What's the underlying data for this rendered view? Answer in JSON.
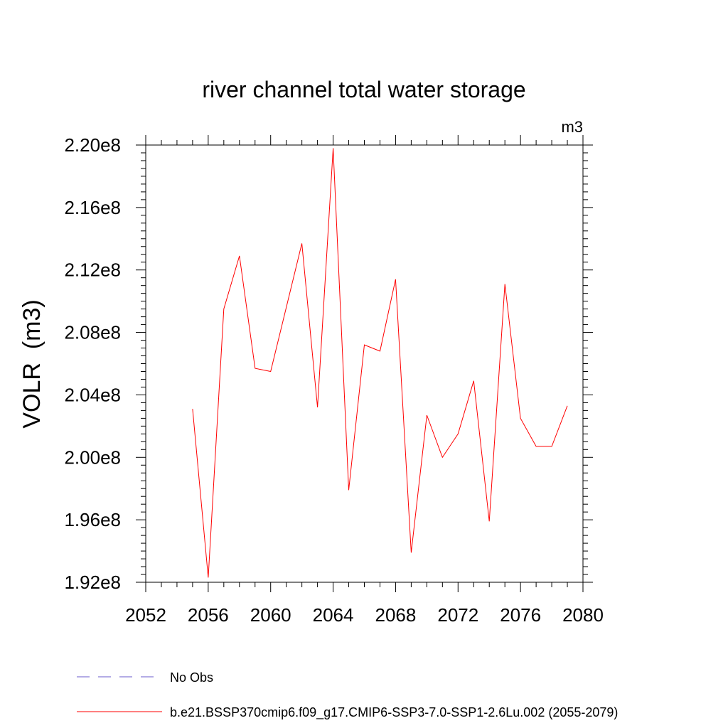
{
  "chart_data": {
    "type": "line",
    "title": "river channel total water storage",
    "units": "m3",
    "xlabel": "",
    "ylabel": "VOLR  (m3)",
    "xlim": [
      2052,
      2080
    ],
    "ylim": [
      192000000.0,
      220000000.0
    ],
    "xticks": [
      2052,
      2056,
      2060,
      2064,
      2068,
      2072,
      2076,
      2080
    ],
    "xtick_labels": [
      "2052",
      "2056",
      "2060",
      "2064",
      "2068",
      "2072",
      "2076",
      "2080"
    ],
    "yticks": [
      192000000.0,
      196000000.0,
      200000000.0,
      204000000.0,
      208000000.0,
      212000000.0,
      216000000.0,
      220000000.0
    ],
    "ytick_labels": [
      "1.92e8",
      "1.96e8",
      "2.00e8",
      "2.04e8",
      "2.08e8",
      "2.12e8",
      "2.16e8",
      "2.20e8"
    ],
    "grid": false,
    "legend_position": "bottom-left",
    "series": [
      {
        "name": "b.e21.BSSP370cmip6.f09_g17.CMIP6-SSP3-7.0-SSP1-2.6Lu.002 (2055-2079)",
        "color": "#ff0000",
        "style": "solid",
        "x": [
          2055,
          2056,
          2057,
          2058,
          2059,
          2060,
          2061,
          2062,
          2063,
          2064,
          2065,
          2066,
          2067,
          2068,
          2069,
          2070,
          2071,
          2072,
          2073,
          2074,
          2075,
          2076,
          2077,
          2078,
          2079
        ],
        "y": [
          203100000.0,
          192300000.0,
          209500000.0,
          212900000.0,
          205700000.0,
          205500000.0,
          209600000.0,
          213700000.0,
          203200000.0,
          219800000.0,
          197900000.0,
          207200000.0,
          206800000.0,
          211400000.0,
          193900000.0,
          202700000.0,
          200000000.0,
          201500000.0,
          204900000.0,
          195900000.0,
          211100000.0,
          202500000.0,
          200700000.0,
          200700000.0,
          203300000.0
        ]
      }
    ],
    "legend": [
      {
        "label": "No Obs",
        "color": "#6a5acd",
        "style": "dashed"
      },
      {
        "label": "b.e21.BSSP370cmip6.f09_g17.CMIP6-SSP3-7.0-SSP1-2.6Lu.002 (2055-2079)",
        "color": "#ff0000",
        "style": "solid"
      }
    ]
  }
}
